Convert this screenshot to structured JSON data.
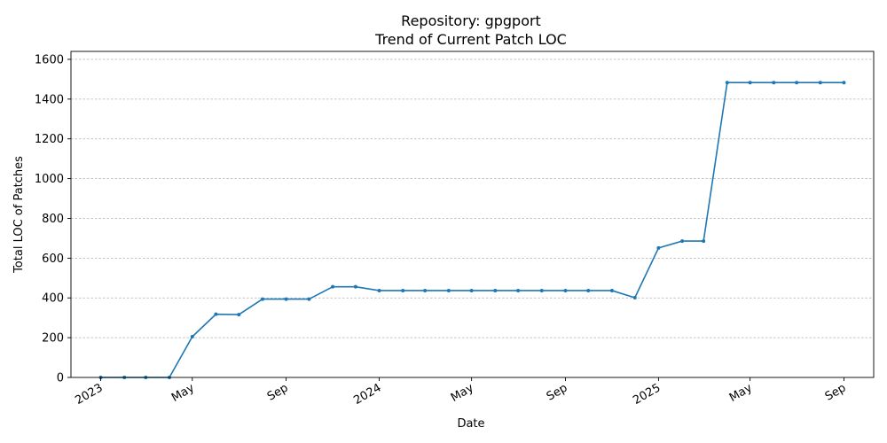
{
  "chart_data": {
    "type": "line",
    "title": "Repository: gpgport",
    "subtitle": "Trend of Current Patch LOC",
    "xlabel": "Date",
    "ylabel": "Total LOC of Patches",
    "ylim": [
      0,
      1640
    ],
    "xlim": [
      "2022-11-23",
      "2025-10-10"
    ],
    "y_ticks": [
      0,
      200,
      400,
      600,
      800,
      1000,
      1200,
      1400,
      1600
    ],
    "y_tick_labels": [
      "0",
      "200",
      "400",
      "600",
      "800",
      "1000",
      "1200",
      "1400",
      "1600"
    ],
    "x_ticks": [
      "2023-01-01",
      "2023-05-01",
      "2023-09-01",
      "2024-01-01",
      "2024-05-01",
      "2024-09-01",
      "2025-01-01",
      "2025-05-01",
      "2025-09-01"
    ],
    "x_tick_labels": [
      "2023",
      "May",
      "Sep",
      "2024",
      "May",
      "Sep",
      "2025",
      "May",
      "Sep"
    ],
    "grid": "horizontal dashed",
    "line_color": "#1f77b4",
    "series": [
      {
        "name": "",
        "x": [
          "2023-01-01",
          "2023-02-01",
          "2023-03-01",
          "2023-04-01",
          "2023-05-01",
          "2023-06-01",
          "2023-07-01",
          "2023-08-01",
          "2023-09-01",
          "2023-10-01",
          "2023-11-01",
          "2023-12-01",
          "2024-01-01",
          "2024-02-01",
          "2024-03-01",
          "2024-04-01",
          "2024-05-01",
          "2024-06-01",
          "2024-07-01",
          "2024-08-01",
          "2024-09-01",
          "2024-10-01",
          "2024-11-01",
          "2024-12-01",
          "2025-01-01",
          "2025-02-01",
          "2025-03-01",
          "2025-04-01",
          "2025-05-01",
          "2025-06-01",
          "2025-07-01",
          "2025-08-01",
          "2025-09-01"
        ],
        "values": [
          0,
          0,
          0,
          0,
          205,
          318,
          316,
          394,
          394,
          394,
          456,
          456,
          437,
          437,
          437,
          437,
          437,
          437,
          437,
          437,
          437,
          437,
          437,
          401,
          651,
          686,
          686,
          1483,
          1483,
          1483,
          1483,
          1483,
          1483
        ]
      }
    ]
  }
}
